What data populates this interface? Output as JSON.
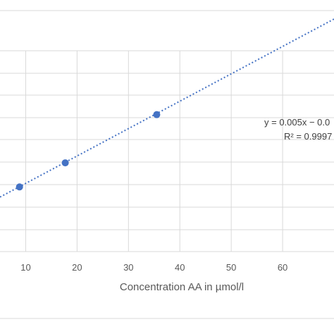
{
  "chart_data": {
    "type": "scatter",
    "xlabel": "Concentration AA in µmol/l",
    "ylabel": "",
    "x_ticks": [
      10,
      20,
      30,
      40,
      50,
      60
    ],
    "xlim": [
      5,
      70
    ],
    "ylim": [
      -0.09,
      0.35
    ],
    "grid": true,
    "points": {
      "x": [
        8.8,
        17.7,
        35.5
      ],
      "y": [
        0.028,
        0.072,
        0.16
      ]
    },
    "trendline": {
      "slope": 0.005,
      "intercept": -0.0155,
      "style": "dotted",
      "equation": "y = 0.005x − 0.0",
      "r_squared": "R² = 0.9997"
    },
    "colors": {
      "marker": "#4472C4",
      "trendline": "#4472C4",
      "grid": "#d9d9d9",
      "text": "#595959"
    }
  }
}
